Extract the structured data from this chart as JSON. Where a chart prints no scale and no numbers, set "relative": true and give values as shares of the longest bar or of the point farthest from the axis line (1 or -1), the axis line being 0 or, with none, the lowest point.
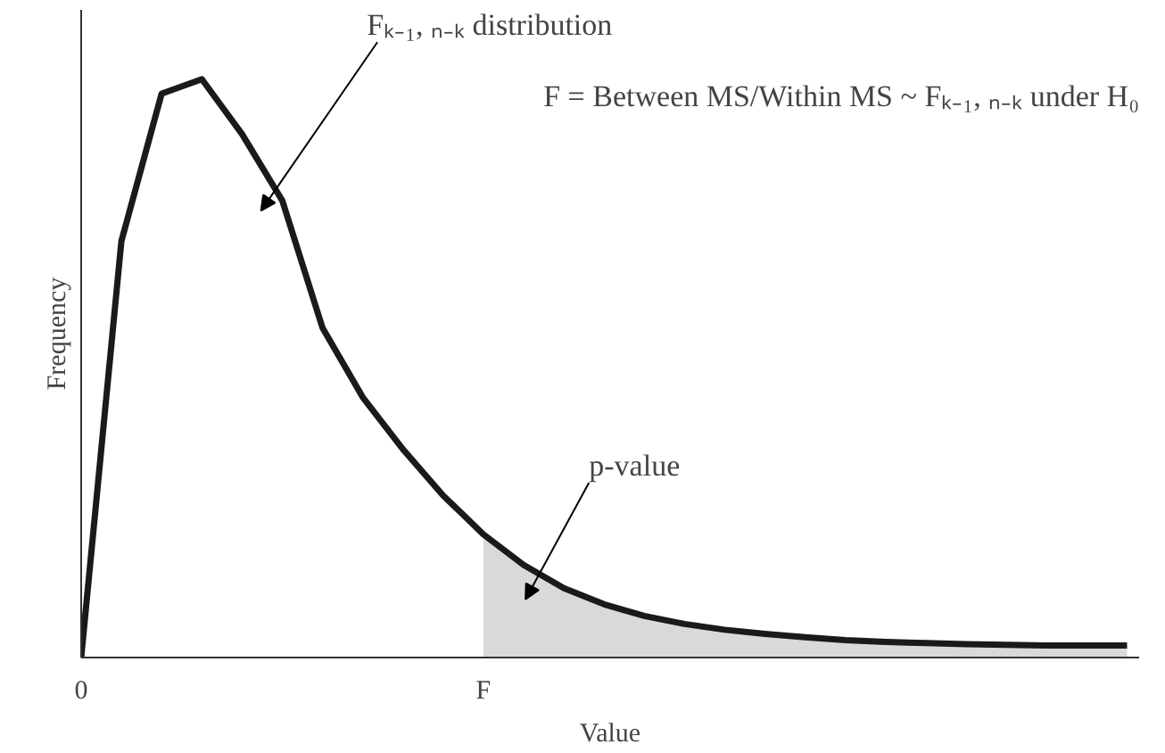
{
  "chart_data": {
    "type": "line",
    "relative": true,
    "xlabel": "Value",
    "ylabel": "Frequency",
    "categories": [
      "0",
      null,
      null,
      null,
      null,
      null,
      null,
      null,
      null,
      null,
      "F",
      null,
      null,
      null,
      null,
      null,
      null,
      null,
      null,
      null,
      null,
      null,
      null,
      null,
      null,
      null,
      null
    ],
    "series": [
      {
        "color": "#1a1a1a",
        "values": [
          0,
          0.72,
          0.975,
          1,
          0.905,
          0.79,
          0.57,
          0.45,
          0.36,
          0.28,
          0.213,
          0.16,
          0.12,
          0.092,
          0.072,
          0.058,
          0.048,
          0.041,
          0.035,
          0.03,
          0.027,
          0.025,
          0.023,
          0.022,
          0.021,
          0.021,
          0.021
        ]
      },
      {
        "type": "area",
        "color": "#d9d9d9",
        "values": [
          null,
          null,
          null,
          null,
          null,
          null,
          null,
          null,
          null,
          null,
          0.213,
          0.16,
          0.12,
          0.092,
          0.072,
          0.058,
          0.048,
          0.041,
          0.035,
          0.03,
          0.027,
          0.025,
          0.023,
          0.022,
          0.021,
          0.021,
          0.021
        ]
      }
    ],
    "tick_labels": "x",
    "grid": false,
    "annotations": [
      "Fₖ₋₁, ₙ₋ₖ distribution",
      "F = Between MS/Within MS ~ Fₖ₋₁, ₙ₋ₖ under H₀",
      "p-value"
    ]
  }
}
